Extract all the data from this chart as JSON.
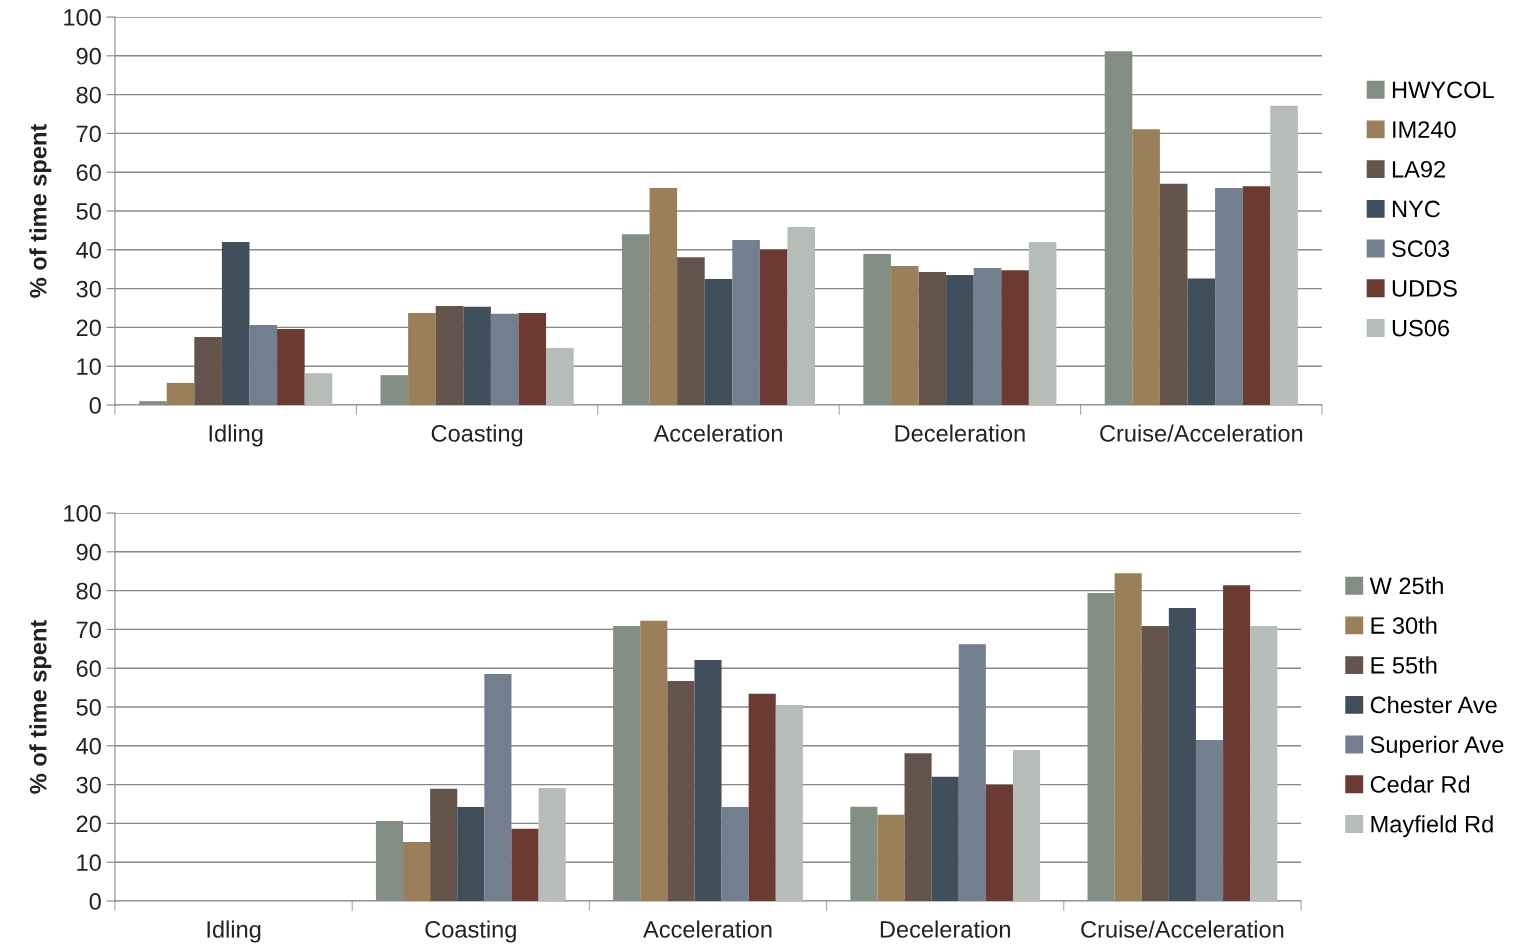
{
  "chart_data": [
    {
      "type": "bar",
      "ylabel": "% of time spent",
      "categories": [
        "Idling",
        "Coasting",
        "Acceleration",
        "Deceleration",
        "Cruise/Acceleration"
      ],
      "ylim": [
        0,
        100
      ],
      "yticks": [
        0,
        10,
        20,
        30,
        40,
        50,
        60,
        70,
        80,
        90,
        100
      ],
      "grid": "y",
      "legend": "right",
      "series": [
        {
          "name": "HWYCOL",
          "color": "#838f84",
          "values": [
            1,
            7.7,
            44,
            38.9,
            91.2
          ]
        },
        {
          "name": "IM240",
          "color": "#9a7f5a",
          "values": [
            5.7,
            23.7,
            55.9,
            35.8,
            71.1
          ]
        },
        {
          "name": "LA92",
          "color": "#65544c",
          "values": [
            17.5,
            25.5,
            38.1,
            34.3,
            57
          ]
        },
        {
          "name": "NYC",
          "color": "#414f5c",
          "values": [
            42,
            25.3,
            32.5,
            33.5,
            32.6
          ]
        },
        {
          "name": "SC03",
          "color": "#737f8f",
          "values": [
            20.6,
            23.5,
            42.5,
            35.3,
            55.9
          ]
        },
        {
          "name": "UDDS",
          "color": "#6b3b33",
          "values": [
            19.6,
            23.7,
            40,
            34.7,
            56.4
          ]
        },
        {
          "name": "US06",
          "color": "#b6bdb8",
          "values": [
            8.2,
            14.7,
            45.9,
            42,
            77.1
          ]
        }
      ]
    },
    {
      "type": "bar",
      "ylabel": "% of time spent",
      "categories": [
        "Idling",
        "Coasting",
        "Acceleration",
        "Deceleration",
        "Cruise/Acceleration"
      ],
      "ylim": [
        0,
        100
      ],
      "yticks": [
        0,
        10,
        20,
        30,
        40,
        50,
        60,
        70,
        80,
        90,
        100
      ],
      "grid": "y",
      "legend": "right",
      "series": [
        {
          "name": "W 25th",
          "color": "#838f84",
          "values": [
            0,
            20.6,
            70.9,
            24.3,
            79.4
          ]
        },
        {
          "name": "E 30th",
          "color": "#9a7f5a",
          "values": [
            0,
            15.2,
            72.2,
            22.2,
            84.5
          ]
        },
        {
          "name": "E 55th",
          "color": "#65544c",
          "values": [
            0,
            28.9,
            56.7,
            38.1,
            70.9
          ]
        },
        {
          "name": "Chester Ave",
          "color": "#414f5c",
          "values": [
            0,
            24.2,
            62.1,
            32,
            75.5
          ]
        },
        {
          "name": "Superior Ave",
          "color": "#737f8f",
          "values": [
            0,
            58.5,
            24.2,
            66.2,
            41.5
          ]
        },
        {
          "name": "Cedar Rd",
          "color": "#6b3b33",
          "values": [
            0,
            18.6,
            53.4,
            29.9,
            81.4
          ]
        },
        {
          "name": "Mayfield Rd",
          "color": "#b6bdb8",
          "values": [
            0,
            29.1,
            50.5,
            38.9,
            70.9
          ]
        }
      ]
    }
  ]
}
